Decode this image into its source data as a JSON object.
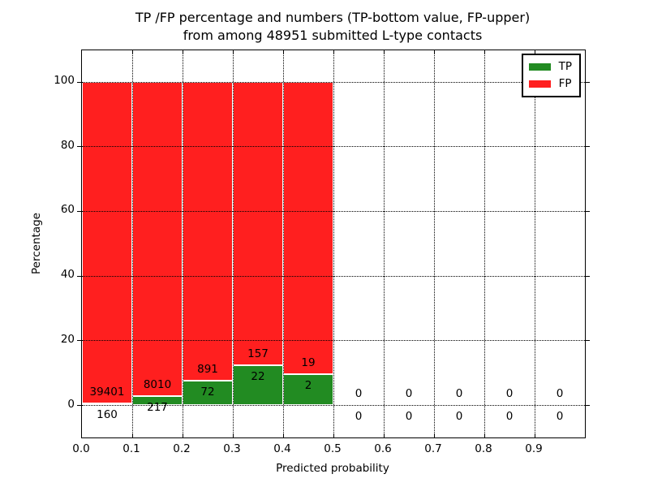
{
  "chart_data": {
    "type": "bar",
    "stacked": true,
    "normalized_to_percent": true,
    "title_line1": "TP /FP percentage and numbers (TP-bottom value, FP-upper)",
    "title_line2": "from among 48951 submitted L-type contacts",
    "xlabel": "Predicted probability",
    "ylabel": "Percentage",
    "xlim": [
      0.0,
      1.0
    ],
    "ylim": [
      -10,
      110
    ],
    "xtick_labels": [
      "0.0",
      "0.1",
      "0.2",
      "0.3",
      "0.4",
      "0.5",
      "0.6",
      "0.7",
      "0.8",
      "0.9"
    ],
    "ytick_values": [
      0,
      20,
      40,
      60,
      80,
      100
    ],
    "grid_style": "dotted",
    "bar_edge_color": "#ffffff",
    "colors": {
      "tp": "#228b22",
      "fp": "#ff1f1f"
    },
    "legend": {
      "position": "upper-right",
      "items": [
        {
          "key": "tp",
          "label": "TP",
          "color": "#228b22"
        },
        {
          "key": "fp",
          "label": "FP",
          "color": "#ff1f1f"
        }
      ]
    },
    "bins": [
      {
        "range": [
          0.0,
          0.1
        ],
        "tp": 160,
        "fp": 39401
      },
      {
        "range": [
          0.1,
          0.2
        ],
        "tp": 217,
        "fp": 8010
      },
      {
        "range": [
          0.2,
          0.3
        ],
        "tp": 72,
        "fp": 891
      },
      {
        "range": [
          0.3,
          0.4
        ],
        "tp": 22,
        "fp": 157
      },
      {
        "range": [
          0.4,
          0.5
        ],
        "tp": 2,
        "fp": 19
      },
      {
        "range": [
          0.5,
          0.6
        ],
        "tp": 0,
        "fp": 0
      },
      {
        "range": [
          0.6,
          0.7
        ],
        "tp": 0,
        "fp": 0
      },
      {
        "range": [
          0.7,
          0.8
        ],
        "tp": 0,
        "fp": 0
      },
      {
        "range": [
          0.8,
          0.9
        ],
        "tp": 0,
        "fp": 0
      },
      {
        "range": [
          0.9,
          1.0
        ],
        "tp": 0,
        "fp": 0
      }
    ]
  }
}
